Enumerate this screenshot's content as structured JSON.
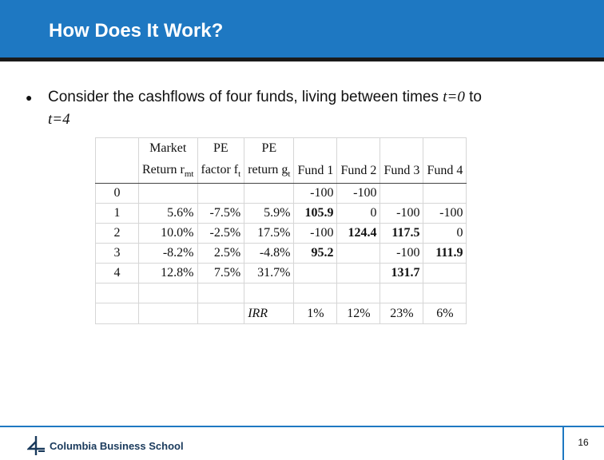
{
  "slide": {
    "title": "How Does It Work?",
    "bullet": {
      "prefix": "Consider the cashflows of four funds, living between times ",
      "t_start": "t=0",
      "mid": " to ",
      "t_end": "t=4"
    },
    "page_number": "16"
  },
  "footer": {
    "logo_text": "Columbia Business School"
  },
  "table": {
    "header_top": [
      "",
      "Market",
      "PE",
      "PE",
      "",
      "",
      "",
      ""
    ],
    "header_bottom": [
      "",
      "Return r",
      "factor f",
      "return g",
      "Fund 1",
      "Fund 2",
      "Fund 3",
      "Fund 4"
    ],
    "header_subs": [
      "",
      "mt",
      "t",
      "t",
      "",
      "",
      "",
      ""
    ],
    "rows": [
      [
        "0",
        "",
        "",
        "",
        "-100",
        "-100",
        "",
        ""
      ],
      [
        "1",
        "5.6%",
        "-7.5%",
        "5.9%",
        "105.9",
        "0",
        "-100",
        "-100"
      ],
      [
        "2",
        "10.0%",
        "-2.5%",
        "17.5%",
        "-100",
        "124.4",
        "117.5",
        "0"
      ],
      [
        "3",
        "-8.2%",
        "2.5%",
        "-4.8%",
        "95.2",
        "",
        "-100",
        "111.9"
      ],
      [
        "4",
        "12.8%",
        "7.5%",
        "31.7%",
        "",
        "",
        "131.7",
        ""
      ],
      [
        "",
        "",
        "",
        "",
        "",
        "",
        "",
        ""
      ]
    ],
    "bold_cells": [
      [
        1,
        4
      ],
      [
        2,
        5
      ],
      [
        2,
        6
      ],
      [
        3,
        4
      ],
      [
        3,
        7
      ],
      [
        4,
        6
      ]
    ],
    "irr_label": "IRR",
    "irr_values": [
      "1%",
      "12%",
      "23%",
      "6%"
    ]
  },
  "colors": {
    "header_bg": "#1e78c2",
    "accent": "#1e78c2",
    "logo": "#1a3a5c"
  }
}
